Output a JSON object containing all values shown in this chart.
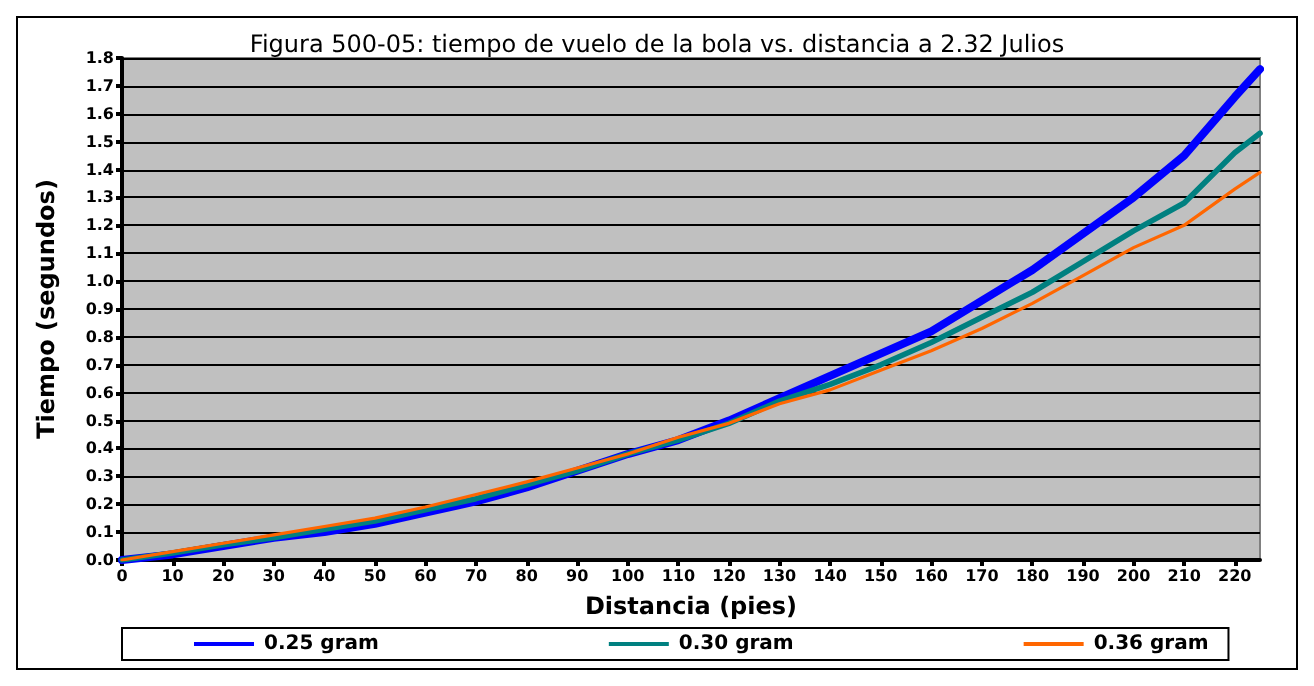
{
  "chart_data": {
    "type": "line",
    "title": "Figura 500-05: tiempo de vuelo de la bola vs. distancia a 2.32 Julios",
    "xlabel": "Distancia (pies)",
    "ylabel": "Tiempo (segundos)",
    "x": [
      0,
      10,
      20,
      30,
      40,
      50,
      60,
      70,
      80,
      90,
      100,
      110,
      120,
      130,
      140,
      150,
      160,
      170,
      180,
      190,
      200,
      210,
      220,
      225
    ],
    "series": [
      {
        "name": "0.25 gram",
        "color": "#0000ff",
        "values": [
          0,
          0.02,
          0.05,
          0.08,
          0.1,
          0.13,
          0.17,
          0.21,
          0.26,
          0.32,
          0.38,
          0.43,
          0.5,
          0.58,
          0.66,
          0.74,
          0.82,
          0.93,
          1.04,
          1.17,
          1.3,
          1.45,
          1.66,
          1.76
        ]
      },
      {
        "name": "0.30 gram",
        "color": "#008080",
        "values": [
          0,
          0.025,
          0.055,
          0.08,
          0.11,
          0.14,
          0.18,
          0.22,
          0.27,
          0.32,
          0.38,
          0.43,
          0.49,
          0.57,
          0.63,
          0.7,
          0.78,
          0.87,
          0.96,
          1.07,
          1.18,
          1.28,
          1.46,
          1.53
        ]
      },
      {
        "name": "0.36 gram",
        "color": "#ff6600",
        "values": [
          0,
          0.03,
          0.06,
          0.09,
          0.12,
          0.15,
          0.19,
          0.235,
          0.28,
          0.33,
          0.38,
          0.44,
          0.49,
          0.56,
          0.61,
          0.68,
          0.75,
          0.83,
          0.92,
          1.02,
          1.12,
          1.2,
          1.33,
          1.39
        ]
      }
    ],
    "xlim": [
      0,
      225
    ],
    "xticks": [
      0,
      10,
      20,
      30,
      40,
      50,
      60,
      70,
      80,
      90,
      100,
      110,
      120,
      130,
      140,
      150,
      160,
      170,
      180,
      190,
      200,
      210,
      220
    ],
    "ylim": [
      0,
      1.8
    ],
    "yticks": [
      {
        "value": 0,
        "label": "0.0"
      },
      0.1,
      0.2,
      0.3,
      0.4,
      0.5,
      0.6,
      0.7,
      0.8,
      0.9,
      {
        "value": 1,
        "label": "1.0"
      },
      1.1,
      1.2,
      1.3,
      1.4,
      1.5,
      1.6,
      1.7,
      1.8
    ],
    "grid": "y",
    "legend": "bottom",
    "marker": "none",
    "line_style": "solid"
  }
}
